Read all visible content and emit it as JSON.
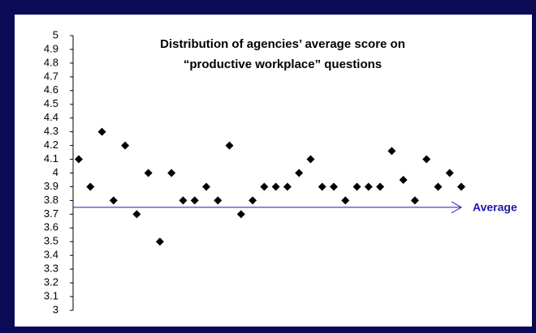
{
  "chart_data": {
    "type": "scatter",
    "title": [
      "Distribution of agencies’ average score on",
      "“productive workplace” questions"
    ],
    "x": [
      1,
      2,
      3,
      4,
      5,
      6,
      7,
      8,
      9,
      10,
      11,
      12,
      13,
      14,
      15,
      16,
      17,
      18,
      19,
      20,
      21,
      22,
      23,
      24,
      25,
      26,
      27,
      28,
      29,
      30,
      31,
      32,
      33,
      34
    ],
    "values": [
      4.1,
      3.9,
      4.3,
      3.8,
      4.2,
      3.7,
      4.0,
      3.5,
      4.0,
      3.8,
      3.8,
      3.9,
      3.8,
      4.2,
      3.7,
      3.8,
      3.9,
      3.9,
      3.9,
      4.0,
      4.1,
      3.9,
      3.9,
      3.8,
      3.9,
      3.9,
      3.9,
      4.16,
      3.95,
      3.8,
      4.1,
      3.9,
      4.0,
      3.9
    ],
    "color": "#000000",
    "ylim": [
      3,
      5
    ],
    "yticks": [
      3,
      3.1,
      3.2,
      3.3,
      3.4,
      3.5,
      3.6,
      3.7,
      3.8,
      3.9,
      4,
      4.1,
      4.2,
      4.3,
      4.4,
      4.5,
      4.6,
      4.7,
      4.8,
      4.9,
      5
    ],
    "average": {
      "label": "Average",
      "value": 3.75,
      "color": "#1a1aa6"
    }
  }
}
